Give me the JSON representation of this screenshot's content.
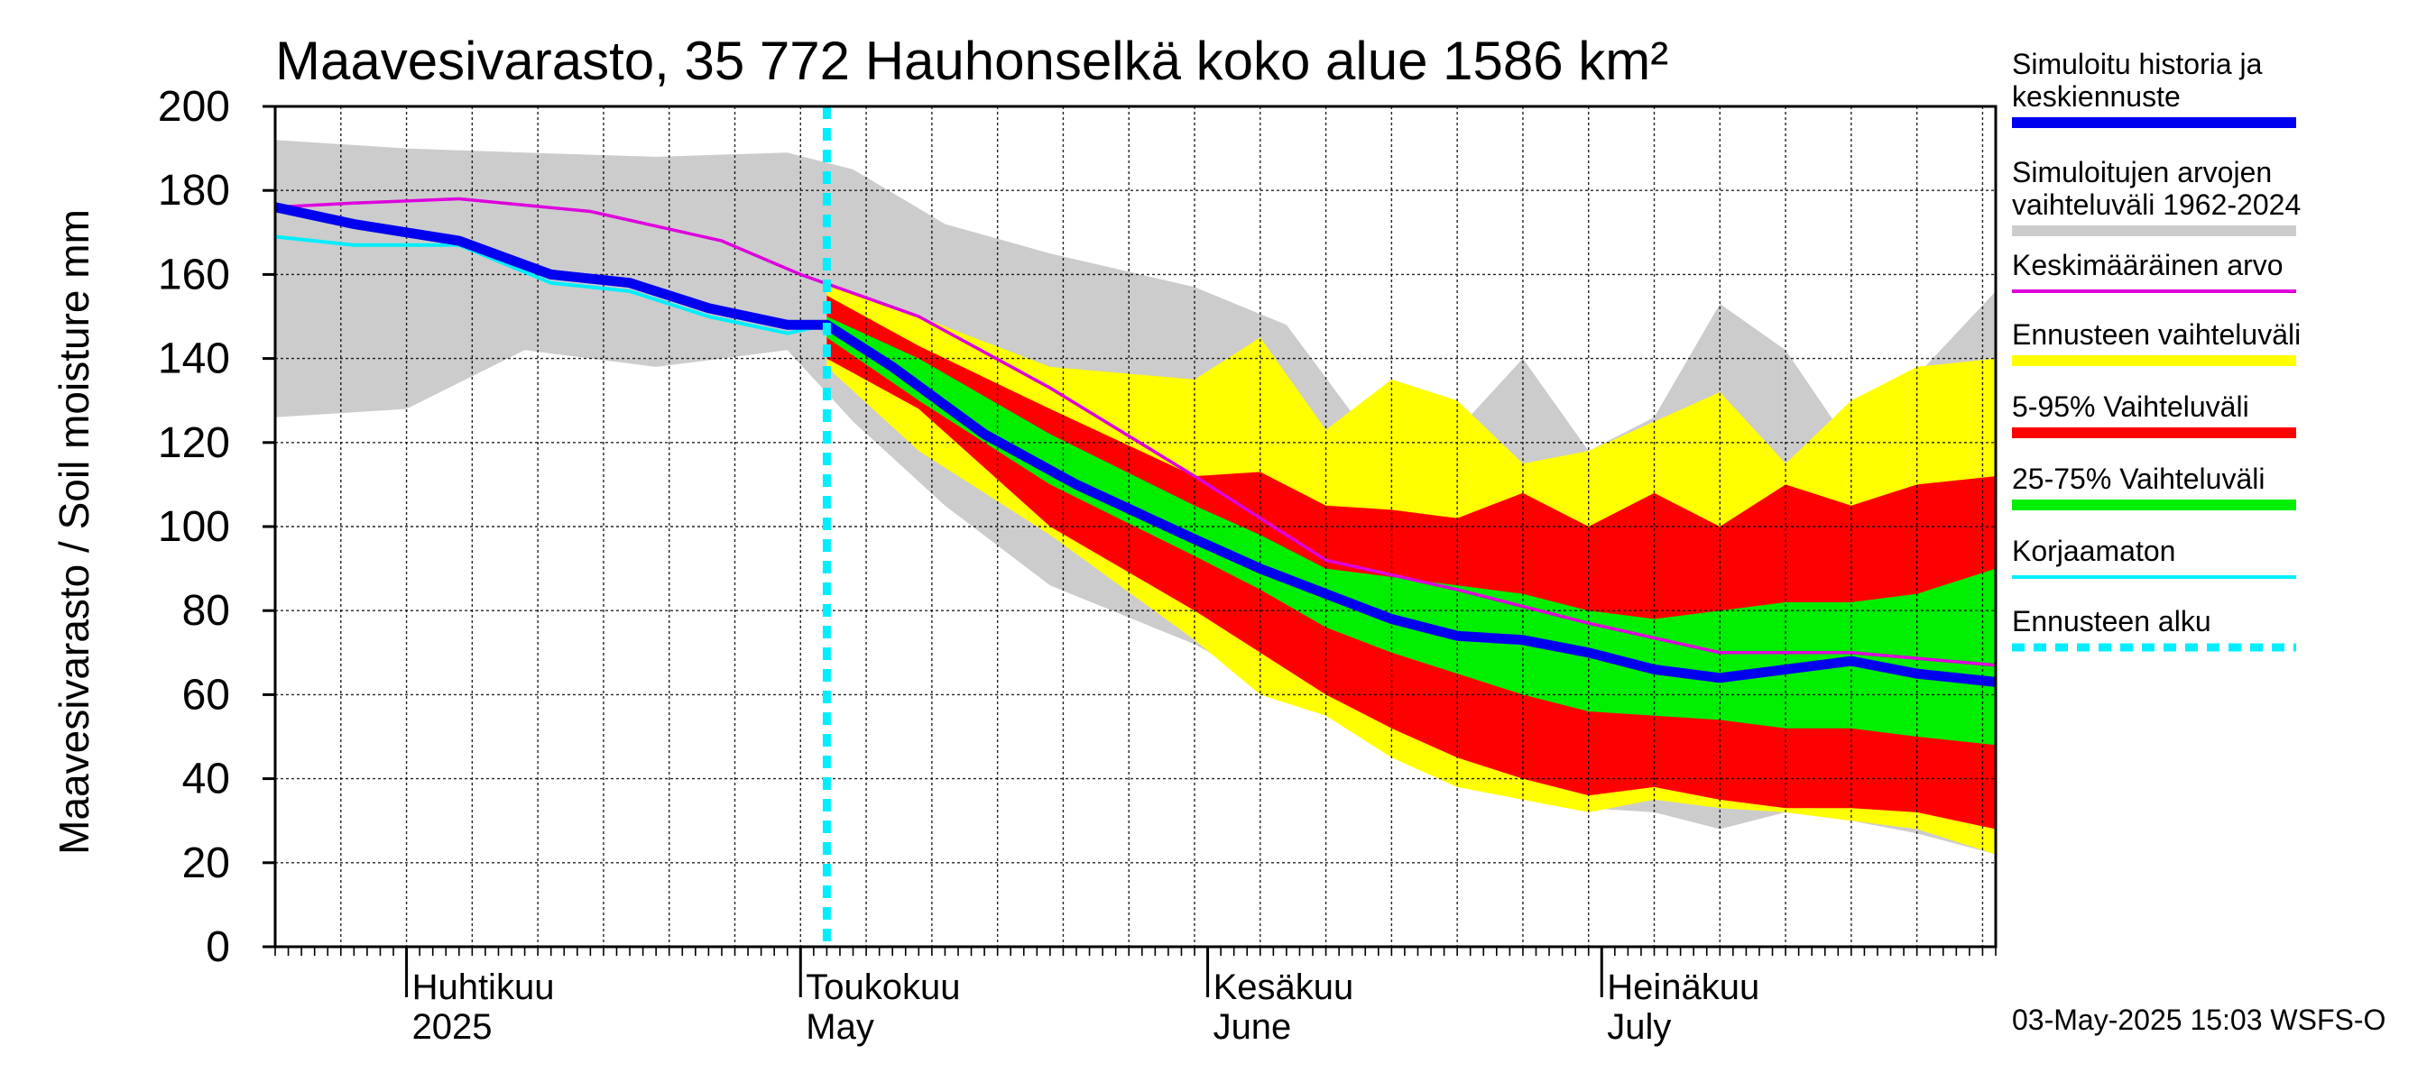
{
  "chart_data": {
    "type": "area",
    "title": "Maavesivarasto, 35 772 Hauhonselkä koko alue 1586 km²",
    "ylabel": "Maavesivarasto / Soil moisture   mm",
    "ylim": [
      0,
      200
    ],
    "yticks": [
      "0",
      "20",
      "40",
      "60",
      "80",
      "100",
      "120",
      "140",
      "160",
      "180",
      "200"
    ],
    "xlim": [
      "2025-03-22",
      "2025-07-31"
    ],
    "grid": true,
    "legend_position": "right",
    "months": [
      {
        "fi": "Huhtikuu",
        "en": "2025"
      },
      {
        "fi": "Toukokuu",
        "en": "May"
      },
      {
        "fi": "Kesäkuu",
        "en": "June"
      },
      {
        "fi": "Heinäkuu",
        "en": "July"
      }
    ],
    "forecast_start": "2025-05-03",
    "legend": [
      {
        "label": "Simuloitu historia ja keskiennuste",
        "color": "#0000ee"
      },
      {
        "label": "Simuloitujen arvojen vaihteluväli 1962-2024",
        "color": "#cccccc"
      },
      {
        "label": "Keskimääräinen arvo",
        "color": "#dd00dd"
      },
      {
        "label": "Ennusteen vaihteluväli",
        "color": "#ffff00"
      },
      {
        "label": "5-95% Vaihteluväli",
        "color": "#ff0000"
      },
      {
        "label": "25-75% Vaihteluväli",
        "color": "#00ee00"
      },
      {
        "label": "Korjaamaton",
        "color": "#00eeff"
      },
      {
        "label": "Ennusteen alku",
        "color": "#00eeff"
      }
    ],
    "series": [
      {
        "name": "Simuloitujen arvojen vaihteluväli 1962-2024 (max)",
        "x": [
          "2025-03-22",
          "2025-04-01",
          "2025-04-10",
          "2025-04-20",
          "2025-04-30",
          "2025-05-05",
          "2025-05-12",
          "2025-05-20",
          "2025-05-31",
          "2025-06-07",
          "2025-06-12",
          "2025-06-16",
          "2025-06-20",
          "2025-06-25",
          "2025-06-30",
          "2025-07-05",
          "2025-07-10",
          "2025-07-15",
          "2025-07-20",
          "2025-07-25",
          "2025-07-31"
        ],
        "values": [
          192,
          190,
          189,
          188,
          189,
          185,
          172,
          165,
          157,
          148,
          127,
          132,
          123,
          140,
          118,
          126,
          153,
          142,
          119,
          136,
          156
        ]
      },
      {
        "name": "Simuloitujen arvojen vaihteluväli 1962-2024 (min)",
        "x": [
          "2025-03-22",
          "2025-04-01",
          "2025-04-10",
          "2025-04-20",
          "2025-04-30",
          "2025-05-05",
          "2025-05-12",
          "2025-05-20",
          "2025-05-31",
          "2025-06-07",
          "2025-06-12",
          "2025-06-16",
          "2025-06-20",
          "2025-06-25",
          "2025-06-30",
          "2025-07-05",
          "2025-07-10",
          "2025-07-15",
          "2025-07-20",
          "2025-07-25",
          "2025-07-31"
        ],
        "values": [
          126,
          128,
          142,
          138,
          142,
          125,
          105,
          86,
          72,
          60,
          53,
          44,
          38,
          40,
          33,
          32,
          28,
          32,
          30,
          27,
          22
        ]
      },
      {
        "name": "Ennusteen vaihteluväli (max)",
        "x": [
          "2025-05-03",
          "2025-05-10",
          "2025-05-20",
          "2025-05-31",
          "2025-06-05",
          "2025-06-10",
          "2025-06-15",
          "2025-06-20",
          "2025-06-25",
          "2025-06-30",
          "2025-07-05",
          "2025-07-10",
          "2025-07-15",
          "2025-07-20",
          "2025-07-25",
          "2025-07-31"
        ],
        "values": [
          158,
          150,
          138,
          135,
          145,
          123,
          135,
          130,
          115,
          118,
          125,
          132,
          115,
          130,
          138,
          140
        ]
      },
      {
        "name": "Ennusteen vaihteluväli (min)",
        "x": [
          "2025-05-03",
          "2025-05-10",
          "2025-05-20",
          "2025-05-31",
          "2025-06-05",
          "2025-06-10",
          "2025-06-15",
          "2025-06-20",
          "2025-06-25",
          "2025-06-30",
          "2025-07-05",
          "2025-07-10",
          "2025-07-15",
          "2025-07-20",
          "2025-07-25",
          "2025-07-31"
        ],
        "values": [
          138,
          118,
          98,
          73,
          60,
          55,
          45,
          38,
          35,
          32,
          35,
          33,
          32,
          30,
          28,
          22
        ]
      },
      {
        "name": "5-95% Vaihteluväli (max)",
        "x": [
          "2025-05-03",
          "2025-05-10",
          "2025-05-20",
          "2025-05-31",
          "2025-06-05",
          "2025-06-10",
          "2025-06-15",
          "2025-06-20",
          "2025-06-25",
          "2025-06-30",
          "2025-07-05",
          "2025-07-10",
          "2025-07-15",
          "2025-07-20",
          "2025-07-25",
          "2025-07-31"
        ],
        "values": [
          155,
          143,
          128,
          112,
          113,
          105,
          104,
          102,
          108,
          100,
          108,
          100,
          110,
          105,
          110,
          112
        ]
      },
      {
        "name": "5-95% Vaihteluväli (min)",
        "x": [
          "2025-05-03",
          "2025-05-10",
          "2025-05-20",
          "2025-05-31",
          "2025-06-05",
          "2025-06-10",
          "2025-06-15",
          "2025-06-20",
          "2025-06-25",
          "2025-06-30",
          "2025-07-05",
          "2025-07-10",
          "2025-07-15",
          "2025-07-20",
          "2025-07-25",
          "2025-07-31"
        ],
        "values": [
          140,
          128,
          100,
          80,
          70,
          60,
          52,
          45,
          40,
          36,
          38,
          35,
          33,
          33,
          32,
          28
        ]
      },
      {
        "name": "25-75% Vaihteluväli (max)",
        "x": [
          "2025-05-03",
          "2025-05-10",
          "2025-05-20",
          "2025-05-31",
          "2025-06-05",
          "2025-06-10",
          "2025-06-15",
          "2025-06-20",
          "2025-06-25",
          "2025-06-30",
          "2025-07-05",
          "2025-07-10",
          "2025-07-15",
          "2025-07-20",
          "2025-07-25",
          "2025-07-31"
        ],
        "values": [
          150,
          140,
          122,
          105,
          98,
          90,
          88,
          86,
          84,
          80,
          78,
          80,
          82,
          82,
          84,
          90
        ]
      },
      {
        "name": "25-75% Vaihteluväli (min)",
        "x": [
          "2025-05-03",
          "2025-05-10",
          "2025-05-20",
          "2025-05-31",
          "2025-06-05",
          "2025-06-10",
          "2025-06-15",
          "2025-06-20",
          "2025-06-25",
          "2025-06-30",
          "2025-07-05",
          "2025-07-10",
          "2025-07-15",
          "2025-07-20",
          "2025-07-25",
          "2025-07-31"
        ],
        "values": [
          145,
          130,
          110,
          93,
          85,
          76,
          70,
          65,
          60,
          56,
          55,
          54,
          52,
          52,
          50,
          48
        ]
      },
      {
        "name": "Keskimääräinen arvo",
        "x": [
          "2025-03-22",
          "2025-03-28",
          "2025-04-05",
          "2025-04-15",
          "2025-04-25",
          "2025-05-01",
          "2025-05-10",
          "2025-05-20",
          "2025-05-31",
          "2025-06-10",
          "2025-06-20",
          "2025-06-30",
          "2025-07-10",
          "2025-07-20",
          "2025-07-31"
        ],
        "values": [
          176,
          177,
          178,
          175,
          168,
          160,
          150,
          133,
          112,
          92,
          85,
          77,
          70,
          70,
          67
        ]
      },
      {
        "name": "Simuloitu historia ja keskiennuste",
        "x": [
          "2025-03-22",
          "2025-03-28",
          "2025-04-05",
          "2025-04-12",
          "2025-04-18",
          "2025-04-24",
          "2025-04-30",
          "2025-05-03",
          "2025-05-08",
          "2025-05-15",
          "2025-05-22",
          "2025-05-31",
          "2025-06-05",
          "2025-06-10",
          "2025-06-15",
          "2025-06-20",
          "2025-06-25",
          "2025-06-30",
          "2025-07-05",
          "2025-07-10",
          "2025-07-15",
          "2025-07-20",
          "2025-07-25",
          "2025-07-31"
        ],
        "values": [
          176,
          172,
          168,
          160,
          158,
          152,
          148,
          148,
          138,
          122,
          110,
          97,
          90,
          84,
          78,
          74,
          73,
          70,
          66,
          64,
          66,
          68,
          65,
          63
        ]
      },
      {
        "name": "Korjaamaton",
        "x": [
          "2025-03-22",
          "2025-03-28",
          "2025-04-05",
          "2025-04-12",
          "2025-04-18",
          "2025-04-24",
          "2025-04-30",
          "2025-05-03"
        ],
        "values": [
          169,
          167,
          167,
          158,
          156,
          150,
          146,
          148
        ]
      }
    ]
  },
  "footer": "03-May-2025 15:03 WSFS-O"
}
